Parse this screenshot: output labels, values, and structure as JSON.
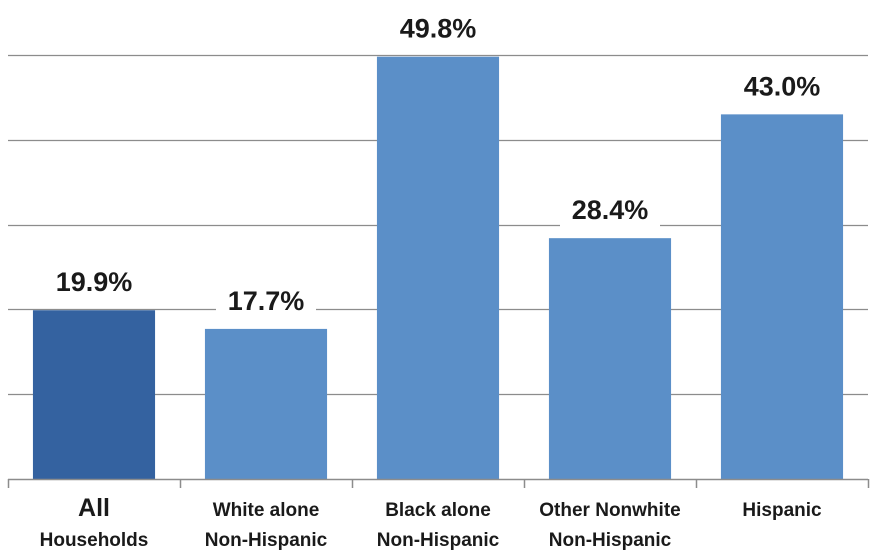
{
  "chart_data": {
    "type": "bar",
    "categories": [
      [
        "All",
        "Households"
      ],
      [
        "White alone",
        "Non-Hispanic"
      ],
      [
        "Black alone",
        "Non-Hispanic"
      ],
      [
        "Other Nonwhite",
        "Non-Hispanic"
      ],
      [
        "Hispanic"
      ]
    ],
    "values": [
      19.9,
      17.7,
      49.8,
      28.4,
      43.0
    ],
    "value_labels": [
      "19.9%",
      "17.7%",
      "49.8%",
      "28.4%",
      "43.0%"
    ],
    "colors": [
      "#3462a0",
      "#5b8fc8",
      "#5b8fc8",
      "#5b8fc8",
      "#5b8fc8"
    ],
    "ylim": [
      0,
      50
    ],
    "y_tick_step": 10,
    "grid": true,
    "y_tick_labels_shown": false,
    "title": "",
    "xlabel": "",
    "ylabel": ""
  }
}
